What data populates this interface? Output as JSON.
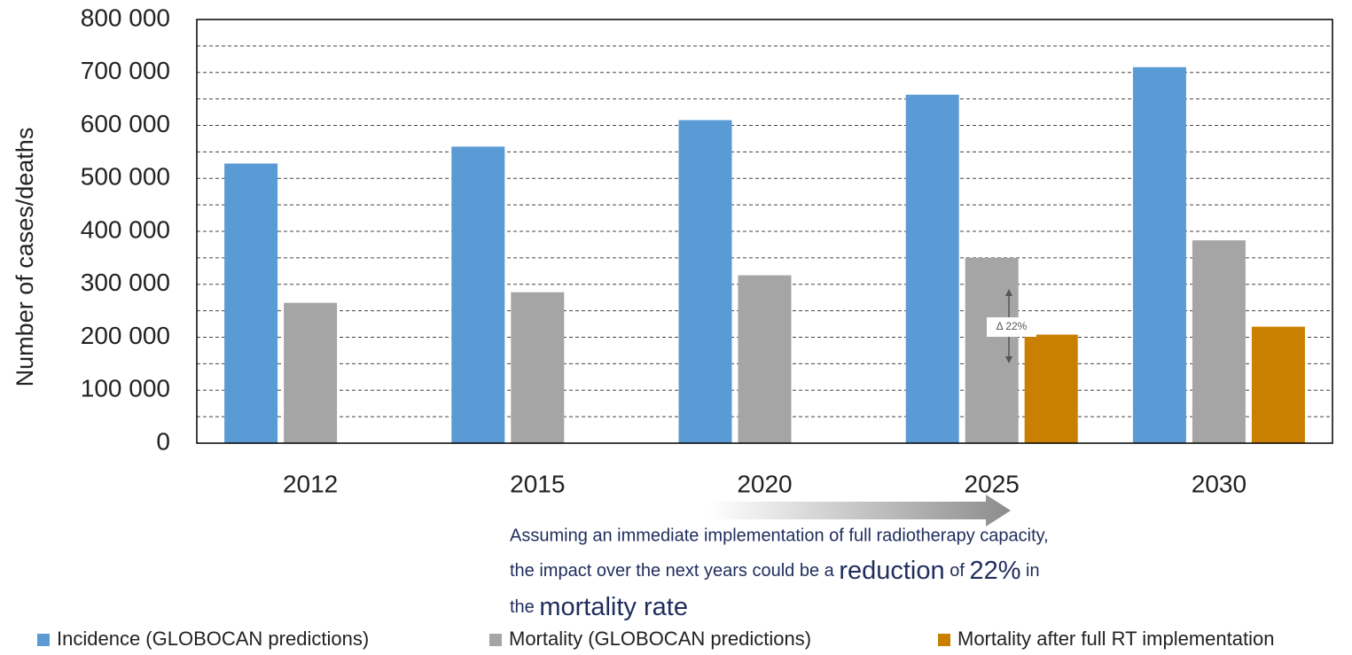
{
  "chart_data": {
    "type": "bar",
    "y_label": "Number of cases/deaths",
    "categories": [
      "2012",
      "2015",
      "2020",
      "2025",
      "2030"
    ],
    "series": [
      {
        "name": "Incidence (GLOBOCAN predictions)",
        "color": "#5b9bd5",
        "values": [
          528000,
          560000,
          610000,
          658000,
          710000
        ]
      },
      {
        "name": "Mortality (GLOBOCAN predictions)",
        "color": "#a5a5a5",
        "values": [
          265000,
          285000,
          317000,
          350000,
          383000
        ]
      },
      {
        "name": "Mortality after full RT implementation",
        "color": "#c97f00",
        "values": [
          null,
          null,
          null,
          205000,
          220000
        ]
      }
    ],
    "ylim": [
      0,
      800000
    ],
    "yticks": [
      {
        "value": 0,
        "label": "0"
      },
      {
        "value": 100000,
        "label": "100 000"
      },
      {
        "value": 200000,
        "label": "200 000"
      },
      {
        "value": 300000,
        "label": "300 000"
      },
      {
        "value": 400000,
        "label": "400 000"
      },
      {
        "value": 500000,
        "label": "500 000"
      },
      {
        "value": 600000,
        "label": "600 000"
      },
      {
        "value": 700000,
        "label": "700 000"
      },
      {
        "value": 800000,
        "label": "800 000"
      }
    ],
    "grid": true,
    "minor_grid": true,
    "legend": "bottom",
    "delta_label": "Δ 22%",
    "annotation": {
      "line1": "Assuming an immediate implementation of full radiotherapy capacity,",
      "line2": [
        "the impact over the next years could be a ",
        "reduction",
        " of ",
        "22%",
        " in"
      ],
      "line3": [
        "the ",
        "mortality rate"
      ]
    }
  }
}
